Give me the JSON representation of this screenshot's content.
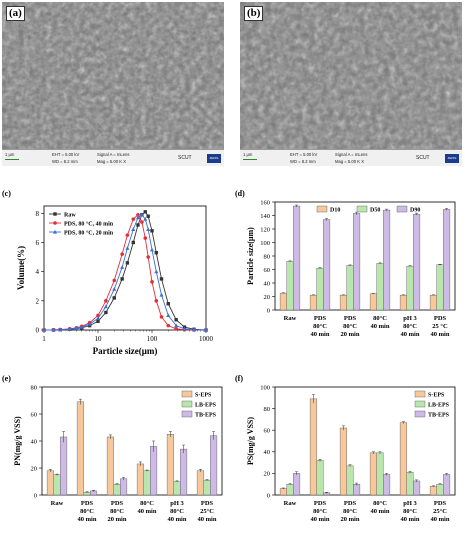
{
  "sem_images": [
    {
      "panel_label": "(a)",
      "scale": "1 μm",
      "eht": "EHT = 5.00 kV",
      "wd": "WD = 8.2 mm",
      "signal": "Signal A = InLens",
      "mag": "Mag = 5.00 K X",
      "org": "SCUT",
      "logo": "ZEISS"
    },
    {
      "panel_label": "(b)",
      "scale": "1 μm",
      "eht": "EHT = 5.00 kV",
      "wd": "WD = 8.2 mm",
      "signal": "Signal A = InLens",
      "mag": "Mag = 5.00 K X",
      "org": "SCUT",
      "logo": "ZEISS"
    }
  ],
  "chart_data": [
    {
      "panel_label": "(c)",
      "type": "line",
      "xlabel": "Particle size(μm)",
      "ylabel": "Volume(%)",
      "xscale": "log",
      "xlim": [
        1,
        1000
      ],
      "ylim": [
        0,
        8.5
      ],
      "xticks": [
        "1",
        "10",
        "100",
        "1000"
      ],
      "yticks": [
        "0",
        "2",
        "4",
        "6",
        "8"
      ],
      "legend_position": "top-left",
      "series": [
        {
          "name": "Raw",
          "color": "#333333",
          "marker": "square",
          "x": [
            1,
            1.5,
            2,
            3,
            4,
            5,
            7,
            10,
            14,
            20,
            28,
            35,
            45,
            55,
            65,
            75,
            85,
            100,
            120,
            150,
            200,
            280,
            400,
            600,
            1000
          ],
          "y": [
            0,
            0,
            0.02,
            0.05,
            0.1,
            0.15,
            0.3,
            0.6,
            1.2,
            2.2,
            3.5,
            4.6,
            6.0,
            7.2,
            7.9,
            8.1,
            7.8,
            6.8,
            5.3,
            3.5,
            1.8,
            0.7,
            0.2,
            0.05,
            0
          ]
        },
        {
          "name": "PDS, 80 °C, 40 min",
          "color": "#e0303a",
          "marker": "circle",
          "x": [
            1,
            1.5,
            2,
            3,
            4,
            5,
            7,
            10,
            14,
            20,
            28,
            35,
            45,
            55,
            65,
            75,
            85,
            100,
            120,
            150,
            200,
            280,
            400,
            600,
            1000
          ],
          "y": [
            0,
            0.01,
            0.03,
            0.08,
            0.15,
            0.25,
            0.5,
            1.0,
            2.0,
            3.4,
            5.2,
            6.5,
            7.6,
            7.9,
            7.4,
            6.3,
            5.0,
            3.3,
            2.0,
            0.9,
            0.3,
            0.08,
            0.02,
            0,
            0
          ]
        },
        {
          "name": "PDS, 80 °C, 20 min",
          "color": "#3a6fd8",
          "marker": "triangle",
          "x": [
            1,
            1.5,
            2,
            3,
            4,
            5,
            7,
            10,
            14,
            20,
            28,
            35,
            45,
            55,
            65,
            75,
            85,
            100,
            120,
            150,
            200,
            280,
            400,
            600,
            1000
          ],
          "y": [
            0,
            0,
            0.02,
            0.06,
            0.12,
            0.2,
            0.4,
            0.8,
            1.6,
            2.8,
            4.3,
            5.6,
            6.9,
            7.7,
            7.9,
            7.6,
            6.9,
            5.5,
            4.0,
            2.4,
            1.0,
            0.3,
            0.08,
            0.02,
            0
          ]
        }
      ]
    },
    {
      "panel_label": "(d)",
      "type": "bar",
      "xlabel": "",
      "ylabel": "Particle size(μm)",
      "ylim": [
        0,
        160
      ],
      "yticks": [
        "0",
        "20",
        "40",
        "60",
        "80",
        "100",
        "120",
        "140",
        "160"
      ],
      "legend_position": "top",
      "categories": [
        "Raw",
        "PDS 80°C 40 min",
        "PDS 80°C 20 min",
        "80°C 40 min",
        "pH 3 80°C 40 min",
        "PDS 25 °C 40 min"
      ],
      "category_lines": [
        [
          "Raw"
        ],
        [
          "PDS",
          "80°C",
          "40 min"
        ],
        [
          "PDS",
          "80°C",
          "20 min"
        ],
        [
          "80°C",
          "40 min"
        ],
        [
          "pH 3",
          "80°C",
          "40 min"
        ],
        [
          "PDS",
          "25 °C",
          "40 min"
        ]
      ],
      "series": [
        {
          "name": "D10",
          "color": "#f7c89b",
          "values": [
            25,
            22,
            22,
            24,
            22,
            22
          ],
          "errors": [
            0.5,
            0.5,
            0.5,
            0.5,
            0.5,
            0.5
          ]
        },
        {
          "name": "D50",
          "color": "#b9e6ad",
          "values": [
            72,
            62,
            66,
            69,
            65,
            67
          ],
          "errors": [
            0.8,
            0.8,
            0.8,
            0.8,
            0.8,
            0.8
          ]
        },
        {
          "name": "D90",
          "color": "#cdbbe6",
          "values": [
            154,
            134,
            143,
            148,
            142,
            149
          ],
          "errors": [
            1.5,
            1.5,
            2,
            1.5,
            1.5,
            1.5
          ]
        }
      ]
    },
    {
      "panel_label": "(e)",
      "type": "bar",
      "xlabel": "",
      "ylabel": "PN(mg/g VSS)",
      "ylim": [
        0,
        80
      ],
      "yticks": [
        "0",
        "20",
        "40",
        "60",
        "80"
      ],
      "legend_position": "top-right",
      "categories": [
        "Raw",
        "PDS 80°C 40 min",
        "PDS 80°C 20 min",
        "80°C 40 min",
        "pH 3 80°C 40 min",
        "PDS 25°C 40 min"
      ],
      "category_lines": [
        [
          "Raw"
        ],
        [
          "PDS",
          "80°C",
          "40 min"
        ],
        [
          "PDS",
          "80°C",
          "20 min"
        ],
        [
          "80°C",
          "40 min"
        ],
        [
          "pH 3",
          "80°C",
          "40 min"
        ],
        [
          "PDS",
          "25°C",
          "40 min"
        ]
      ],
      "series": [
        {
          "name": "S-EPS",
          "color": "#f7c89b",
          "values": [
            18,
            69,
            43,
            23,
            45,
            18
          ],
          "errors": [
            1,
            2,
            1.5,
            1.5,
            2,
            1
          ]
        },
        {
          "name": "LB-EPS",
          "color": "#b9e6ad",
          "values": [
            15,
            2,
            8,
            18,
            10,
            11
          ],
          "errors": [
            0.5,
            0.5,
            0.5,
            0.5,
            0.5,
            0.5
          ]
        },
        {
          "name": "TB-EPS",
          "color": "#cdbbe6",
          "values": [
            43,
            3,
            12,
            36,
            34,
            44
          ],
          "errors": [
            4,
            0.5,
            1,
            4,
            3,
            3
          ]
        }
      ]
    },
    {
      "panel_label": "(f)",
      "type": "bar",
      "xlabel": "",
      "ylabel": "PS(mg/g VSS)",
      "ylim": [
        0,
        100
      ],
      "yticks": [
        "0",
        "20",
        "40",
        "60",
        "80",
        "100"
      ],
      "legend_position": "top-right",
      "categories": [
        "Raw",
        "PDS 80°C 40 min",
        "PDS 80°C 20 min",
        "80°C 40 min",
        "pH 3 80°C 40 min",
        "PDS 25°C 40 min"
      ],
      "category_lines": [
        [
          "Raw"
        ],
        [
          "PDS",
          "80°C",
          "40 min"
        ],
        [
          "PDS",
          "80°C",
          "20 min"
        ],
        [
          "80°C",
          "40 min"
        ],
        [
          "pH 3",
          "80°C",
          "40 min"
        ],
        [
          "PDS",
          "25°C",
          "40 min"
        ]
      ],
      "series": [
        {
          "name": "S-EPS",
          "color": "#f7c89b",
          "values": [
            6,
            89,
            62,
            39,
            67,
            8
          ],
          "errors": [
            0.5,
            4,
            2,
            1,
            1,
            0.5
          ]
        },
        {
          "name": "LB-EPS",
          "color": "#b9e6ad",
          "values": [
            10,
            32,
            27,
            39,
            21,
            10
          ],
          "errors": [
            0.5,
            1,
            1,
            1,
            1,
            0.5
          ]
        },
        {
          "name": "TB-EPS",
          "color": "#cdbbe6",
          "values": [
            20,
            2,
            10,
            19,
            13,
            19
          ],
          "errors": [
            1.5,
            0.5,
            1,
            1,
            1,
            1
          ]
        }
      ]
    }
  ]
}
